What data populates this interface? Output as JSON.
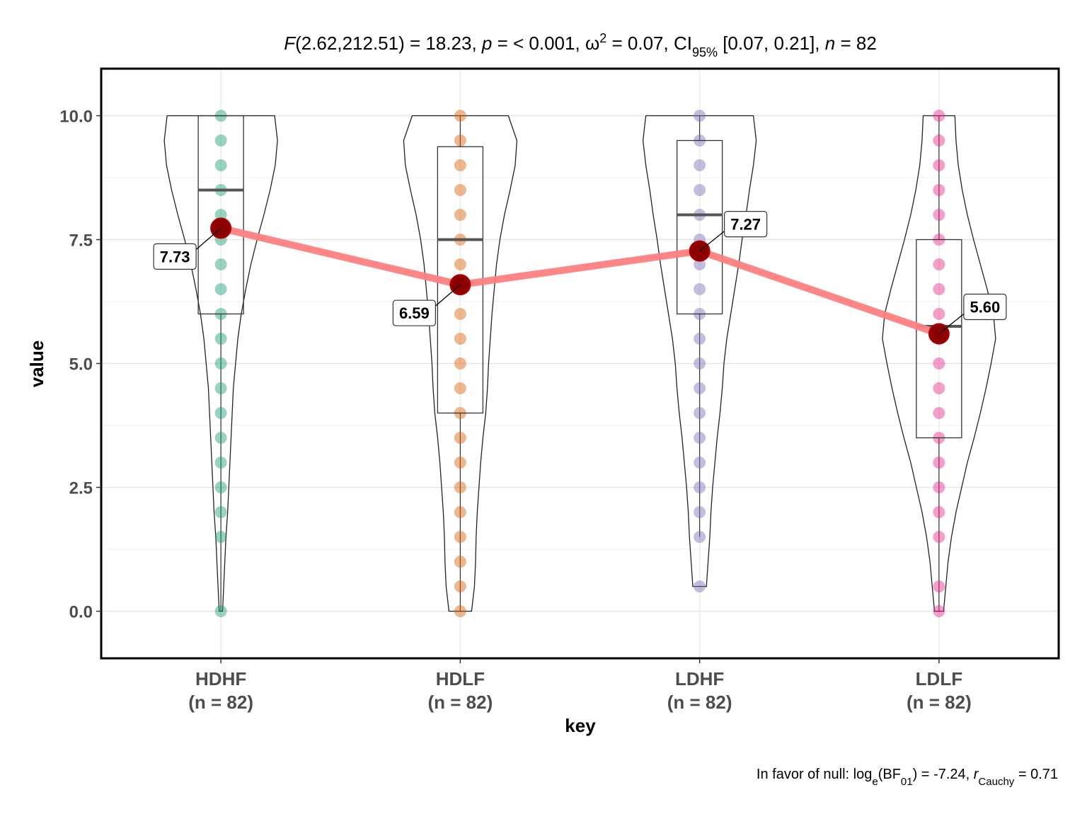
{
  "chart_data": {
    "type": "violin-box-dot",
    "title": {
      "f_label": "F",
      "f_args": "(2.62,212.51) = 18.23, ",
      "p_label": "p",
      "p_value": " = < 0.001, ",
      "omega_label": "ω",
      "omega_sup": "2",
      "omega_value": " = 0.07, CI",
      "ci_sub": "95%",
      "ci_value": " [0.07, 0.21], ",
      "n_label": "n",
      "n_value": " = 82"
    },
    "caption": {
      "prefix": "In favor of null: log",
      "log_sub": "e",
      "bf_open": "(BF",
      "bf_sub": "01",
      "bf_value": ") = -7.24, ",
      "r_label": "r",
      "r_sub": "Cauchy",
      "r_value": " = 0.71"
    },
    "xlabel": "key",
    "ylabel": "value",
    "ylim": [
      -0.95,
      10.95
    ],
    "yticks": [
      0,
      2.5,
      5,
      7.5,
      10
    ],
    "ytick_labels": [
      "0.0",
      "2.5",
      "5.0",
      "7.5",
      "10.0"
    ],
    "grid": true,
    "mean_line_color": "#ff7f7f",
    "mean_point_color": "#8b0000",
    "groups": [
      {
        "name": "HDHF",
        "n_label": "(n = 82)",
        "color": "#1b9e77",
        "mean": 7.73,
        "mean_label": "7.73",
        "box": {
          "q1": 6.0,
          "median": 8.5,
          "q3": 10.0,
          "whisker_low": 0.0,
          "whisker_high": 10.0
        },
        "violin": [
          [
            0,
            0.03
          ],
          [
            0.5,
            0.05
          ],
          [
            1,
            0.07
          ],
          [
            1.5,
            0.09
          ],
          [
            2,
            0.12
          ],
          [
            2.5,
            0.14
          ],
          [
            3,
            0.16
          ],
          [
            3.5,
            0.18
          ],
          [
            4,
            0.2
          ],
          [
            4.5,
            0.22
          ],
          [
            5,
            0.26
          ],
          [
            5.5,
            0.3
          ],
          [
            6,
            0.36
          ],
          [
            6.5,
            0.44
          ],
          [
            7,
            0.53
          ],
          [
            7.5,
            0.64
          ],
          [
            8,
            0.76
          ],
          [
            8.5,
            0.87
          ],
          [
            9,
            0.96
          ],
          [
            9.5,
            1.0
          ],
          [
            10,
            0.95
          ]
        ],
        "points": [
          0,
          1.5,
          2,
          2.5,
          3,
          3.5,
          4,
          4.5,
          5,
          5.5,
          6,
          6.5,
          7,
          7.5,
          8,
          8.5,
          9,
          9.5,
          10
        ]
      },
      {
        "name": "HDLF",
        "n_label": "(n = 82)",
        "color": "#d95f02",
        "mean": 6.59,
        "mean_label": "6.59",
        "box": {
          "q1": 4.0,
          "median": 7.5,
          "q3": 9.375,
          "whisker_low": 0.0,
          "whisker_high": 10.0
        },
        "violin": [
          [
            0,
            0.2
          ],
          [
            0.5,
            0.25
          ],
          [
            1,
            0.27
          ],
          [
            1.5,
            0.28
          ],
          [
            2,
            0.3
          ],
          [
            2.5,
            0.33
          ],
          [
            3,
            0.36
          ],
          [
            3.5,
            0.4
          ],
          [
            4,
            0.45
          ],
          [
            4.5,
            0.48
          ],
          [
            5,
            0.5
          ],
          [
            5.5,
            0.53
          ],
          [
            6,
            0.56
          ],
          [
            6.5,
            0.6
          ],
          [
            7,
            0.64
          ],
          [
            7.5,
            0.7
          ],
          [
            8,
            0.78
          ],
          [
            8.5,
            0.88
          ],
          [
            9,
            0.97
          ],
          [
            9.5,
            1.0
          ],
          [
            10,
            0.85
          ]
        ],
        "points": [
          0,
          0.5,
          1,
          1.5,
          2,
          2.5,
          3,
          3.5,
          4,
          4.5,
          5,
          5.5,
          6,
          6.5,
          7,
          7.5,
          8,
          8.5,
          9,
          9.5,
          10
        ]
      },
      {
        "name": "LDHF",
        "n_label": "(n = 82)",
        "color": "#7570b3",
        "mean": 7.27,
        "mean_label": "7.27",
        "box": {
          "q1": 6.0,
          "median": 8.0,
          "q3": 9.5,
          "whisker_low": 1.5,
          "whisker_high": 10.0
        },
        "violin": [
          [
            0.5,
            0.12
          ],
          [
            1,
            0.15
          ],
          [
            1.5,
            0.18
          ],
          [
            2,
            0.2
          ],
          [
            2.5,
            0.23
          ],
          [
            3,
            0.27
          ],
          [
            3.5,
            0.31
          ],
          [
            4,
            0.36
          ],
          [
            4.5,
            0.4
          ],
          [
            5,
            0.43
          ],
          [
            5.5,
            0.48
          ],
          [
            6,
            0.55
          ],
          [
            6.5,
            0.62
          ],
          [
            7,
            0.69
          ],
          [
            7.5,
            0.75
          ],
          [
            8,
            0.82
          ],
          [
            8.5,
            0.88
          ],
          [
            9,
            0.95
          ],
          [
            9.5,
            1.0
          ],
          [
            10,
            0.95
          ]
        ],
        "points": [
          0.5,
          1.5,
          2,
          2.5,
          3,
          3.5,
          4,
          4.5,
          5,
          5.5,
          6,
          6.5,
          7,
          7.5,
          8,
          8.5,
          9,
          9.5,
          10
        ]
      },
      {
        "name": "LDLF",
        "n_label": "(n = 82)",
        "color": "#e7298a",
        "mean": 5.6,
        "mean_label": "5.60",
        "box": {
          "q1": 3.5,
          "median": 5.75,
          "q3": 7.5,
          "whisker_low": 0.0,
          "whisker_high": 10.0
        },
        "violin": [
          [
            0,
            0.08
          ],
          [
            0.5,
            0.12
          ],
          [
            1,
            0.16
          ],
          [
            1.5,
            0.22
          ],
          [
            2,
            0.3
          ],
          [
            2.5,
            0.4
          ],
          [
            3,
            0.5
          ],
          [
            3.5,
            0.62
          ],
          [
            4,
            0.73
          ],
          [
            4.5,
            0.83
          ],
          [
            5,
            0.92
          ],
          [
            5.5,
            1.0
          ],
          [
            6,
            0.96
          ],
          [
            6.5,
            0.85
          ],
          [
            7,
            0.73
          ],
          [
            7.5,
            0.61
          ],
          [
            8,
            0.5
          ],
          [
            8.5,
            0.41
          ],
          [
            9,
            0.34
          ],
          [
            9.5,
            0.3
          ],
          [
            10,
            0.28
          ]
        ],
        "points": [
          0,
          0.5,
          1.5,
          2,
          2.5,
          3,
          3.5,
          4,
          4.5,
          5,
          5.5,
          6,
          6.5,
          7,
          7.5,
          8,
          8.5,
          9,
          9.5,
          10
        ]
      }
    ]
  }
}
